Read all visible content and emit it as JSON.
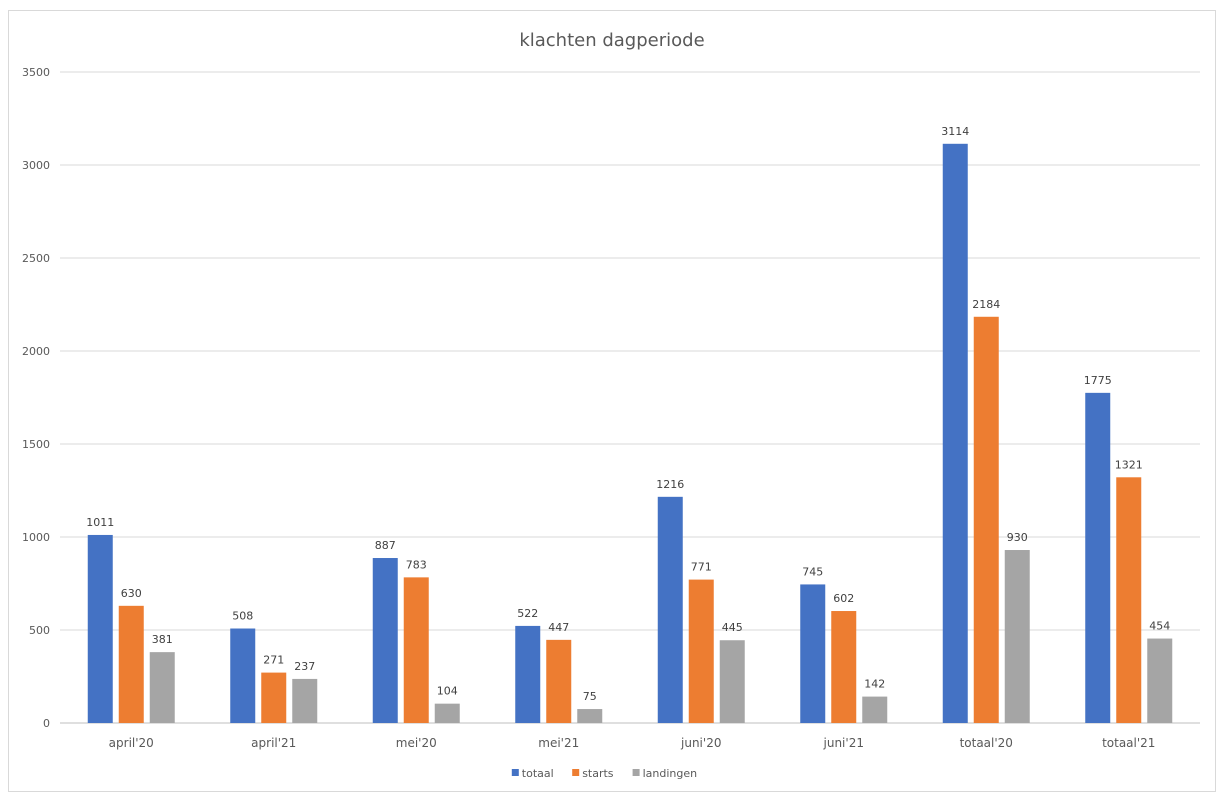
{
  "chart_data": {
    "type": "bar",
    "title": "klachten dagperiode",
    "xlabel": "",
    "ylabel": "",
    "ylim": [
      0,
      3500
    ],
    "yticks": [
      0,
      500,
      1000,
      1500,
      2000,
      2500,
      3000,
      3500
    ],
    "grid": true,
    "legend_position": "bottom",
    "categories": [
      "april'20",
      "april'21",
      "mei'20",
      "mei'21",
      "juni'20",
      "juni'21",
      "totaal'20",
      "totaal'21"
    ],
    "series": [
      {
        "name": "totaal",
        "color": "#4472c4",
        "values": [
          1011,
          508,
          887,
          522,
          1216,
          745,
          3114,
          1775
        ]
      },
      {
        "name": "starts",
        "color": "#ed7d31",
        "values": [
          630,
          271,
          783,
          447,
          771,
          602,
          2184,
          1321
        ]
      },
      {
        "name": "landingen",
        "color": "#a5a5a5",
        "values": [
          381,
          237,
          104,
          75,
          445,
          142,
          930,
          454
        ]
      }
    ]
  }
}
